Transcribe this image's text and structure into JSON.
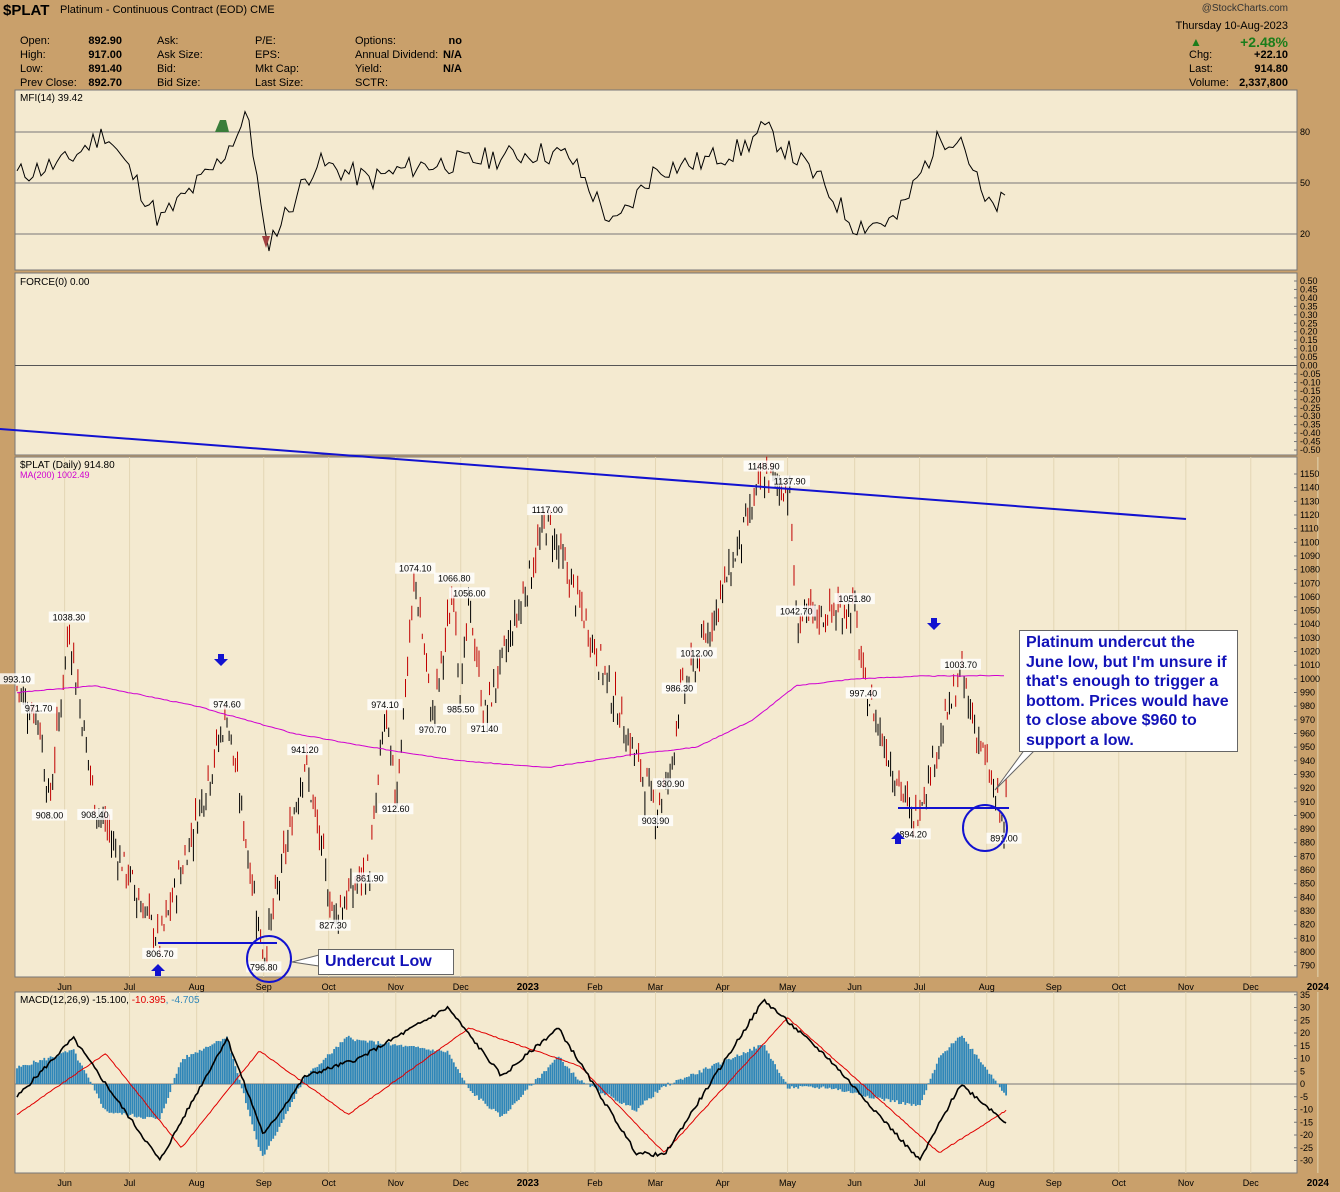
{
  "header": {
    "symbol": "$PLAT",
    "subtitle": "Platinum - Continuous Contract (EOD)  CME",
    "logo": "@StockCharts.com",
    "date": "Thursday  10-Aug-2023",
    "pct_change": "+2.48%",
    "right_quotes": [
      {
        "label": "Chg:",
        "value": "+22.10"
      },
      {
        "label": "Last:",
        "value": "914.80"
      },
      {
        "label": "Volume:",
        "value": "2,337,800"
      }
    ],
    "col1": [
      {
        "label": "Open:",
        "value": "892.90"
      },
      {
        "label": "High:",
        "value": "917.00"
      },
      {
        "label": "Low:",
        "value": "891.40"
      },
      {
        "label": "Prev Close:",
        "value": "892.70"
      }
    ],
    "col2": [
      "Ask:",
      "Ask Size:",
      "Bid:",
      "Bid Size:"
    ],
    "col3": [
      "P/E:",
      "EPS:",
      "Mkt Cap:",
      "Last Size:"
    ],
    "col4": [
      {
        "label": "Options:",
        "value": "no"
      },
      {
        "label": "Annual Dividend:",
        "value": "N/A"
      },
      {
        "label": "Yield:",
        "value": "N/A"
      },
      {
        "label": "SCTR:",
        "value": ""
      }
    ]
  },
  "colors": {
    "panel_bg": "#f4ead0",
    "page_bg": "#c9a06b",
    "price_up": "#000000",
    "price_down": "#c00000",
    "ma": "#d000d0",
    "annotation": "#1212d0",
    "macd_line": "#000000",
    "signal_line": "#e00000",
    "histogram": "#2f86b8"
  },
  "mfi": {
    "label": "MFI(14) 39.42",
    "levels": [
      80,
      50,
      20
    ]
  },
  "force": {
    "label": "FORCE(0) 0.00",
    "ticks": [
      "0.50",
      "0.45",
      "0.40",
      "0.35",
      "0.30",
      "0.25",
      "0.20",
      "0.15",
      "0.10",
      "0.05",
      "0.00",
      "-0.05",
      "-0.10",
      "-0.15",
      "-0.20",
      "-0.25",
      "-0.30",
      "-0.35",
      "-0.40",
      "-0.45",
      "-0.50"
    ]
  },
  "price_panel": {
    "label": "$PLAT (Daily) 914.80",
    "ma_label": "MA(200) 1002.49"
  },
  "macd_panel": {
    "label": "MACD(12,26,9) -15.100, ",
    "signal_val": "-10.395",
    "hist_val": ", -4.705",
    "ticks": [
      35,
      30,
      25,
      20,
      15,
      10,
      5,
      0,
      -5,
      -10,
      -15,
      -20,
      -25,
      -30
    ]
  },
  "months": [
    "Jun",
    "Jul",
    "Aug",
    "Sep",
    "Oct",
    "Nov",
    "Dec",
    "2023",
    "Feb",
    "Mar",
    "Apr",
    "May",
    "Jun",
    "Jul",
    "Aug",
    "Sep",
    "Oct",
    "Nov",
    "Dec",
    "2024"
  ],
  "callouts": {
    "right": "Platinum undercut the June low, but I'm unsure if that's enough to trigger a bottom. Prices would have to close above $960 to support a low.",
    "left": "Undercut Low"
  },
  "chart_data": [
    {
      "type": "line",
      "title": "MFI(14) 39.42",
      "ylim": [
        0,
        100
      ],
      "levels": [
        20,
        50,
        80
      ],
      "x": [
        "2022-05-10",
        "2022-06-01",
        "2022-06-20",
        "2022-07-15",
        "2022-08-10",
        "2022-08-25",
        "2022-09-02",
        "2022-09-25",
        "2022-10-20",
        "2022-11-10",
        "2022-12-05",
        "2023-01-05",
        "2023-01-20",
        "2023-02-10",
        "2023-03-01",
        "2023-03-20",
        "2023-04-10",
        "2023-04-20",
        "2023-05-15",
        "2023-06-01",
        "2023-06-20",
        "2023-07-10",
        "2023-07-20",
        "2023-08-01",
        "2023-08-10"
      ],
      "values": [
        55,
        62,
        80,
        28,
        60,
        90,
        12,
        62,
        52,
        60,
        63,
        68,
        66,
        24,
        58,
        62,
        70,
        82,
        53,
        25,
        28,
        76,
        78,
        35,
        39.42
      ]
    },
    {
      "type": "line",
      "title": "FORCE(0) 0.00",
      "ylim": [
        -0.5,
        0.5
      ],
      "values": [
        0.0
      ]
    },
    {
      "type": "bar",
      "title": "$PLAT (Daily) 914.80",
      "ylim": [
        785,
        1160
      ],
      "series": [
        {
          "name": "MA(200) 1002.49",
          "x": [
            "2022-05-10",
            "2022-06-15",
            "2022-08-01",
            "2022-09-15",
            "2022-10-20",
            "2022-12-01",
            "2023-01-10",
            "2023-02-20",
            "2023-03-20",
            "2023-04-15",
            "2023-05-05",
            "2023-06-01",
            "2023-07-01",
            "2023-08-10"
          ],
          "values": [
            990,
            995,
            980,
            960,
            950,
            940,
            935,
            945,
            950,
            970,
            995,
            1000,
            1002,
            1002.49
          ]
        }
      ],
      "labels": [
        {
          "x": "2022-05-10",
          "value": 993.1
        },
        {
          "x": "2022-05-20",
          "value": 971.7
        },
        {
          "x": "2022-05-25",
          "value": 908.0
        },
        {
          "x": "2022-06-03",
          "value": 1038.3
        },
        {
          "x": "2022-06-15",
          "value": 908.4
        },
        {
          "x": "2022-07-15",
          "value": 806.7
        },
        {
          "x": "2022-08-15",
          "value": 974.6
        },
        {
          "x": "2022-09-01",
          "value": 796.8
        },
        {
          "x": "2022-09-20",
          "value": 941.2
        },
        {
          "x": "2022-10-03",
          "value": 827.3
        },
        {
          "x": "2022-10-20",
          "value": 861.9
        },
        {
          "x": "2022-10-27",
          "value": 974.1
        },
        {
          "x": "2022-11-01",
          "value": 912.6
        },
        {
          "x": "2022-11-10",
          "value": 1074.1
        },
        {
          "x": "2022-11-18",
          "value": 970.7
        },
        {
          "x": "2022-11-28",
          "value": 1066.8
        },
        {
          "x": "2022-12-01",
          "value": 985.5
        },
        {
          "x": "2022-12-05",
          "value": 1056.0
        },
        {
          "x": "2022-12-12",
          "value": 971.4
        },
        {
          "x": "2023-01-10",
          "value": 1117.0
        },
        {
          "x": "2023-03-01",
          "value": 903.9
        },
        {
          "x": "2023-03-08",
          "value": 930.9
        },
        {
          "x": "2023-03-12",
          "value": 986.3
        },
        {
          "x": "2023-03-20",
          "value": 1012.0
        },
        {
          "x": "2023-04-20",
          "value": 1148.9
        },
        {
          "x": "2023-05-02",
          "value": 1137.9
        },
        {
          "x": "2023-05-05",
          "value": 1042.7
        },
        {
          "x": "2023-06-01",
          "value": 1051.8
        },
        {
          "x": "2023-06-05",
          "value": 997.4
        },
        {
          "x": "2023-06-28",
          "value": 894.2
        },
        {
          "x": "2023-07-20",
          "value": 1003.7
        },
        {
          "x": "2023-08-09",
          "value": 891.0
        }
      ]
    },
    {
      "type": "line",
      "title": "MACD(12,26,9) -15.100, -10.395, -4.705",
      "ylim": [
        -33,
        37
      ],
      "series": [
        {
          "name": "MACD(12,26,9)",
          "x": [
            "2022-05-10",
            "2022-06-05",
            "2022-07-15",
            "2022-08-15",
            "2022-09-01",
            "2022-09-20",
            "2022-10-15",
            "2022-11-25",
            "2022-12-20",
            "2023-01-15",
            "2023-02-20",
            "2023-03-05",
            "2023-04-20",
            "2023-05-20",
            "2023-07-01",
            "2023-07-20",
            "2023-08-10"
          ],
          "values": [
            -5,
            18,
            -30,
            18,
            -20,
            3,
            10,
            30,
            3,
            22,
            -27,
            -28,
            33,
            10,
            -30,
            0,
            -15.1
          ]
        },
        {
          "name": "Signal",
          "x": [
            "2022-05-10",
            "2022-06-20",
            "2022-07-25",
            "2022-08-30",
            "2022-10-10",
            "2022-12-05",
            "2023-01-25",
            "2023-03-05",
            "2023-05-01",
            "2023-07-10",
            "2023-08-10"
          ],
          "values": [
            -12,
            12,
            -25,
            13,
            -12,
            22,
            7,
            -27,
            26,
            -27,
            -10.395
          ]
        }
      ]
    }
  ]
}
